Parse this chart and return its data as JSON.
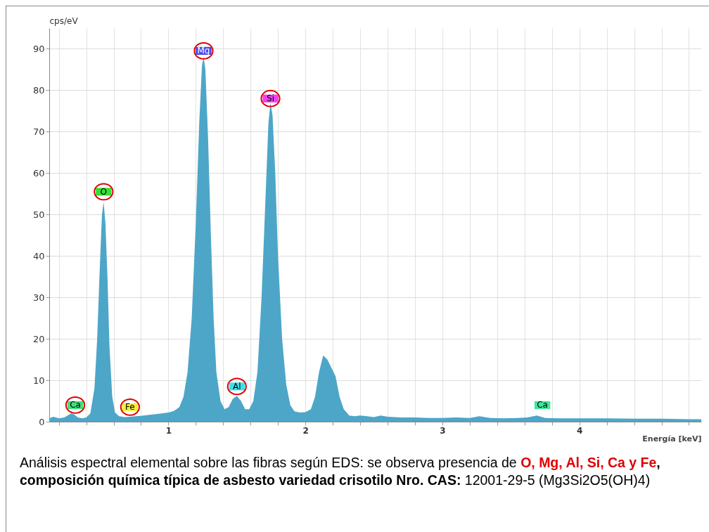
{
  "chart_data": {
    "type": "area",
    "xlabel": "Energía [keV]",
    "ylabel": "cps/eV",
    "grid": true,
    "xlim": [
      0.13,
      4.89
    ],
    "ylim": [
      0,
      95
    ],
    "xticks": [
      {
        "value": 0.2,
        "label": null
      },
      {
        "value": 0.4,
        "label": null
      },
      {
        "value": 0.6,
        "label": null
      },
      {
        "value": 0.8,
        "label": null
      },
      1,
      {
        "value": 1.2,
        "label": null
      },
      {
        "value": 1.4,
        "label": null
      },
      {
        "value": 1.6,
        "label": null
      },
      {
        "value": 1.8,
        "label": null
      },
      2,
      {
        "value": 2.2,
        "label": null
      },
      {
        "value": 2.4,
        "label": null
      },
      {
        "value": 2.6,
        "label": null
      },
      {
        "value": 2.8,
        "label": null
      },
      3,
      {
        "value": 3.2,
        "label": null
      },
      {
        "value": 3.4,
        "label": null
      },
      {
        "value": 3.6,
        "label": null
      },
      {
        "value": 3.8,
        "label": null
      },
      4,
      {
        "value": 4.2,
        "label": null
      },
      {
        "value": 4.4,
        "label": null
      },
      {
        "value": 4.6,
        "label": null
      },
      {
        "value": 4.8,
        "label": null
      }
    ],
    "yticks": [
      0,
      10,
      20,
      30,
      40,
      50,
      60,
      70,
      80,
      90
    ],
    "x": [
      0.13,
      0.16,
      0.2,
      0.24,
      0.27,
      0.29,
      0.31,
      0.34,
      0.37,
      0.4,
      0.43,
      0.46,
      0.48,
      0.5,
      0.515,
      0.527,
      0.54,
      0.555,
      0.57,
      0.59,
      0.61,
      0.64,
      0.68,
      0.72,
      0.76,
      0.8,
      0.85,
      0.9,
      0.95,
      1.0,
      1.04,
      1.08,
      1.11,
      1.14,
      1.17,
      1.2,
      1.225,
      1.245,
      1.257,
      1.27,
      1.29,
      1.31,
      1.33,
      1.35,
      1.38,
      1.41,
      1.44,
      1.47,
      1.5,
      1.53,
      1.56,
      1.59,
      1.62,
      1.65,
      1.68,
      1.71,
      1.73,
      1.745,
      1.76,
      1.78,
      1.8,
      1.83,
      1.86,
      1.89,
      1.92,
      1.96,
      2.0,
      2.04,
      2.07,
      2.1,
      2.13,
      2.16,
      2.19,
      2.22,
      2.25,
      2.28,
      2.32,
      2.36,
      2.4,
      2.45,
      2.5,
      2.55,
      2.6,
      2.7,
      2.8,
      2.9,
      3.0,
      3.1,
      3.2,
      3.27,
      3.35,
      3.45,
      3.55,
      3.62,
      3.69,
      3.75,
      3.85,
      4.0,
      4.2,
      4.4,
      4.6,
      4.8,
      4.89
    ],
    "series": [
      {
        "color": "#4da6c8",
        "values": [
          0.8,
          1.2,
          0.8,
          1.0,
          1.6,
          2.0,
          1.8,
          1.0,
          0.8,
          1.0,
          2,
          8,
          20,
          38,
          50,
          53,
          48,
          35,
          18,
          6,
          2.2,
          1.3,
          1.1,
          1.2,
          1.3,
          1.4,
          1.6,
          1.8,
          2.0,
          2.2,
          2.6,
          3.5,
          6,
          12,
          25,
          48,
          72,
          86,
          88,
          85,
          68,
          45,
          25,
          12,
          5,
          3,
          3.5,
          5.5,
          6.2,
          5,
          3,
          3,
          5,
          12,
          30,
          55,
          72,
          77,
          74,
          60,
          40,
          20,
          9,
          4,
          2.5,
          2.2,
          2.3,
          3,
          6,
          12,
          16,
          15,
          13,
          11,
          6,
          3,
          1.5,
          1.3,
          1.5,
          1.3,
          1.1,
          1.5,
          1.2,
          1.0,
          1.0,
          0.9,
          0.9,
          1.0,
          0.9,
          1.3,
          0.9,
          0.8,
          0.9,
          1.0,
          1.5,
          0.9,
          0.8,
          0.8,
          0.8,
          0.7,
          0.7,
          0.6,
          0.6
        ]
      }
    ],
    "annotations": [
      {
        "text": "Ca",
        "x": 0.32,
        "y": 4
      },
      {
        "text": "O",
        "x": 0.527,
        "y": 55.5
      },
      {
        "text": "Fe",
        "x": 0.72,
        "y": 3.5
      },
      {
        "text": "Mg",
        "x": 1.257,
        "y": 89.5
      },
      {
        "text": "Al",
        "x": 1.5,
        "y": 8.5
      },
      {
        "text": "Si",
        "x": 1.745,
        "y": 78
      },
      {
        "text": "Ca",
        "x": 3.73,
        "y": 4
      },
      "Análisis espectral elemental sobre las fibras según EDS: se observa presencia de ",
      "O, Mg, Al, Si, Ca y Fe",
      ", composición química típica de asbesto variedad crisotilo Nro. CAS:",
      " 12001-29-5 (Mg3Si2O5(OH)4)"
    ]
  }
}
